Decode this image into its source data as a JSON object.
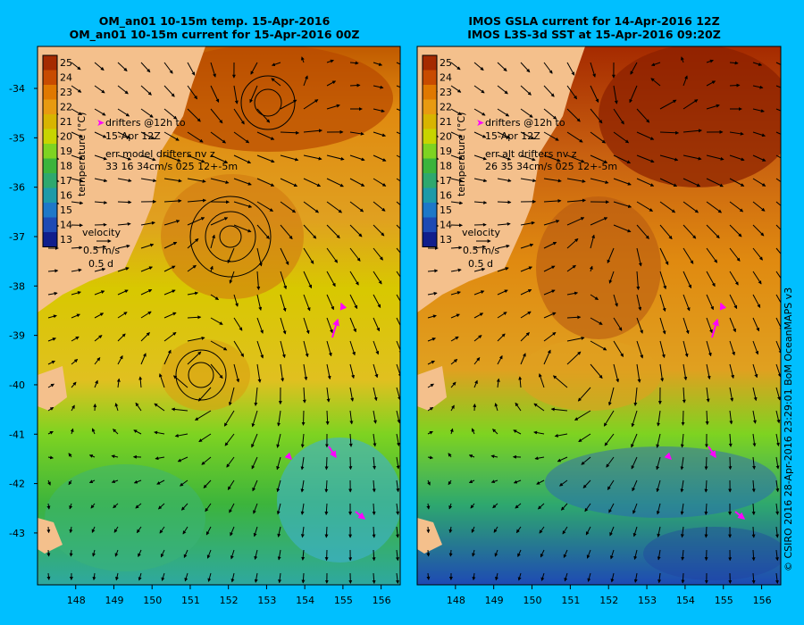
{
  "panels": [
    {
      "title_line1": "OM_an01 10-15m temp. 15-Apr-2016",
      "title_line2": "OM_an01 10-15m current for 15-Apr-2016 00Z",
      "drifter_legend_1": "drifters @12h to",
      "drifter_legend_2": "15-Apr 12Z",
      "err_line_1": "err model drifters nv z",
      "err_line_2": "33 16 34cm/s 025 12+-5m",
      "velocity_label": "velocity",
      "velocity_scale": "0.5 m/s",
      "velocity_time": "0.5 d"
    },
    {
      "title_line1": "IMOS GSLA current for 14-Apr-2016 12Z",
      "title_line2": "IMOS L3S-3d SST at 15-Apr-2016 09:20Z",
      "drifter_legend_1": "drifters @12h to",
      "drifter_legend_2": "15-Apr 12Z",
      "err_line_1": "err alt drifters nv z",
      "err_line_2": "26 35 34cm/s 025 12+-5m",
      "velocity_label": "velocity",
      "velocity_scale": "0.5 m/s",
      "velocity_time": "0.5 d"
    }
  ],
  "colorbar": {
    "label": "temperature (°C)",
    "ticks": [
      "25",
      "24",
      "23",
      "22",
      "21",
      "20",
      "19",
      "18",
      "17",
      "16",
      "15",
      "14",
      "13"
    ],
    "colors": [
      "#a52a00",
      "#c84b00",
      "#e07800",
      "#e89a10",
      "#d8b400",
      "#c8d400",
      "#7ed321",
      "#3cb43c",
      "#2ea86e",
      "#1e9aa8",
      "#1e78c8",
      "#1e4ab4",
      "#101e8c"
    ]
  },
  "axes": {
    "lon_ticks": [
      "148",
      "149",
      "150",
      "151",
      "152",
      "153",
      "154",
      "155",
      "156"
    ],
    "lat_ticks": [
      "-34",
      "-35",
      "-36",
      "-37",
      "-38",
      "-39",
      "-40",
      "-41",
      "-42",
      "-43"
    ]
  },
  "colors": {
    "background": "#00bfff",
    "land": "#f4c08c",
    "drifter": "#ff00ff"
  },
  "credit": "© CSIRO 2016   28-Apr-2016 23:29:01 BoM OceanMAPS v3"
}
